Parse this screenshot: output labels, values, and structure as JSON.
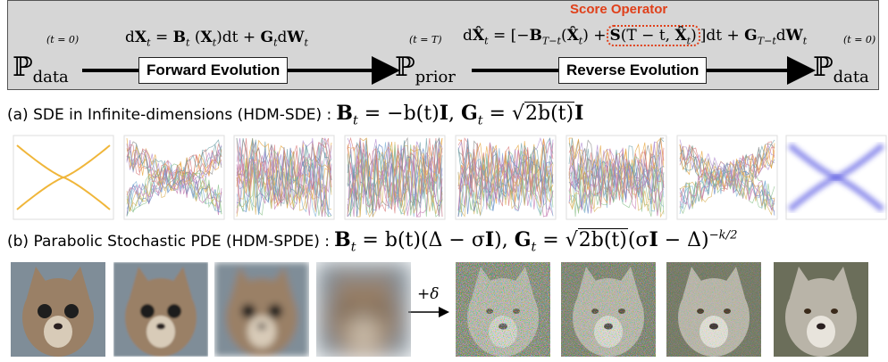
{
  "top": {
    "forward_time": "(t = 0)",
    "forward_eq": [
      "d",
      {
        "b": "X",
        "sub": "t"
      },
      " = ",
      {
        "b": "B",
        "sub": "t"
      },
      " (",
      {
        "b": "X",
        "sub": "t"
      },
      ")dt + ",
      {
        "b": "G",
        "sub": "t"
      },
      "d",
      {
        "b": "W",
        "sub": "t"
      }
    ],
    "reverse_time": "(t = T)",
    "reverse_eq": {
      "pre": [
        "d",
        {
          "b": "X̂",
          "sub": "t"
        },
        " = [−",
        {
          "b": "B",
          "sub": "T−t"
        },
        "(",
        {
          "b": "X̂",
          "sub": "t"
        },
        ") +"
      ],
      "score": [
        {
          "b": "S"
        },
        "(T − t, ",
        {
          "b": "X̂",
          "sub": "t"
        },
        ")"
      ],
      "post": [
        "]dt + ",
        {
          "b": "G",
          "sub": "T−t"
        },
        "d",
        {
          "b": "W",
          "sub": "t"
        }
      ]
    },
    "end_time": "(t = 0)",
    "score_label": "Score Operator",
    "start_node": {
      "t": "ℙ",
      "sub": "data"
    },
    "forward_box": "Forward Evolution",
    "mid_node": {
      "t": "ℙ",
      "sub": "prior"
    },
    "reverse_box": "Reverse Evolution",
    "end_node": {
      "t": "ℙ",
      "sub": "data"
    }
  },
  "row_a": {
    "label": "(a) SDE in Infinite-dimensions (HDM-SDE) :",
    "eq": [
      {
        "b": "B",
        "sub": "t"
      },
      " = −b(t)",
      {
        "b": "I"
      },
      ",  ",
      {
        "b": "G",
        "sub": "t"
      },
      " = ",
      {
        "sqrt": "2b(t)"
      },
      {
        "b": "I"
      }
    ]
  },
  "row_b": {
    "label": "(b) Parabolic Stochastic PDE (HDM-SPDE) :",
    "eq": [
      {
        "b": "B",
        "sub": "t"
      },
      " = b(t)(Δ − σ",
      {
        "b": "I"
      },
      "), ",
      {
        "b": "G",
        "sub": "t"
      },
      " = ",
      {
        "sqrt": "2b(t)"
      },
      "(σ",
      {
        "b": "I"
      },
      " − Δ)",
      {
        "sup": "−k/2"
      }
    ],
    "arrow_label": "+δ"
  }
}
